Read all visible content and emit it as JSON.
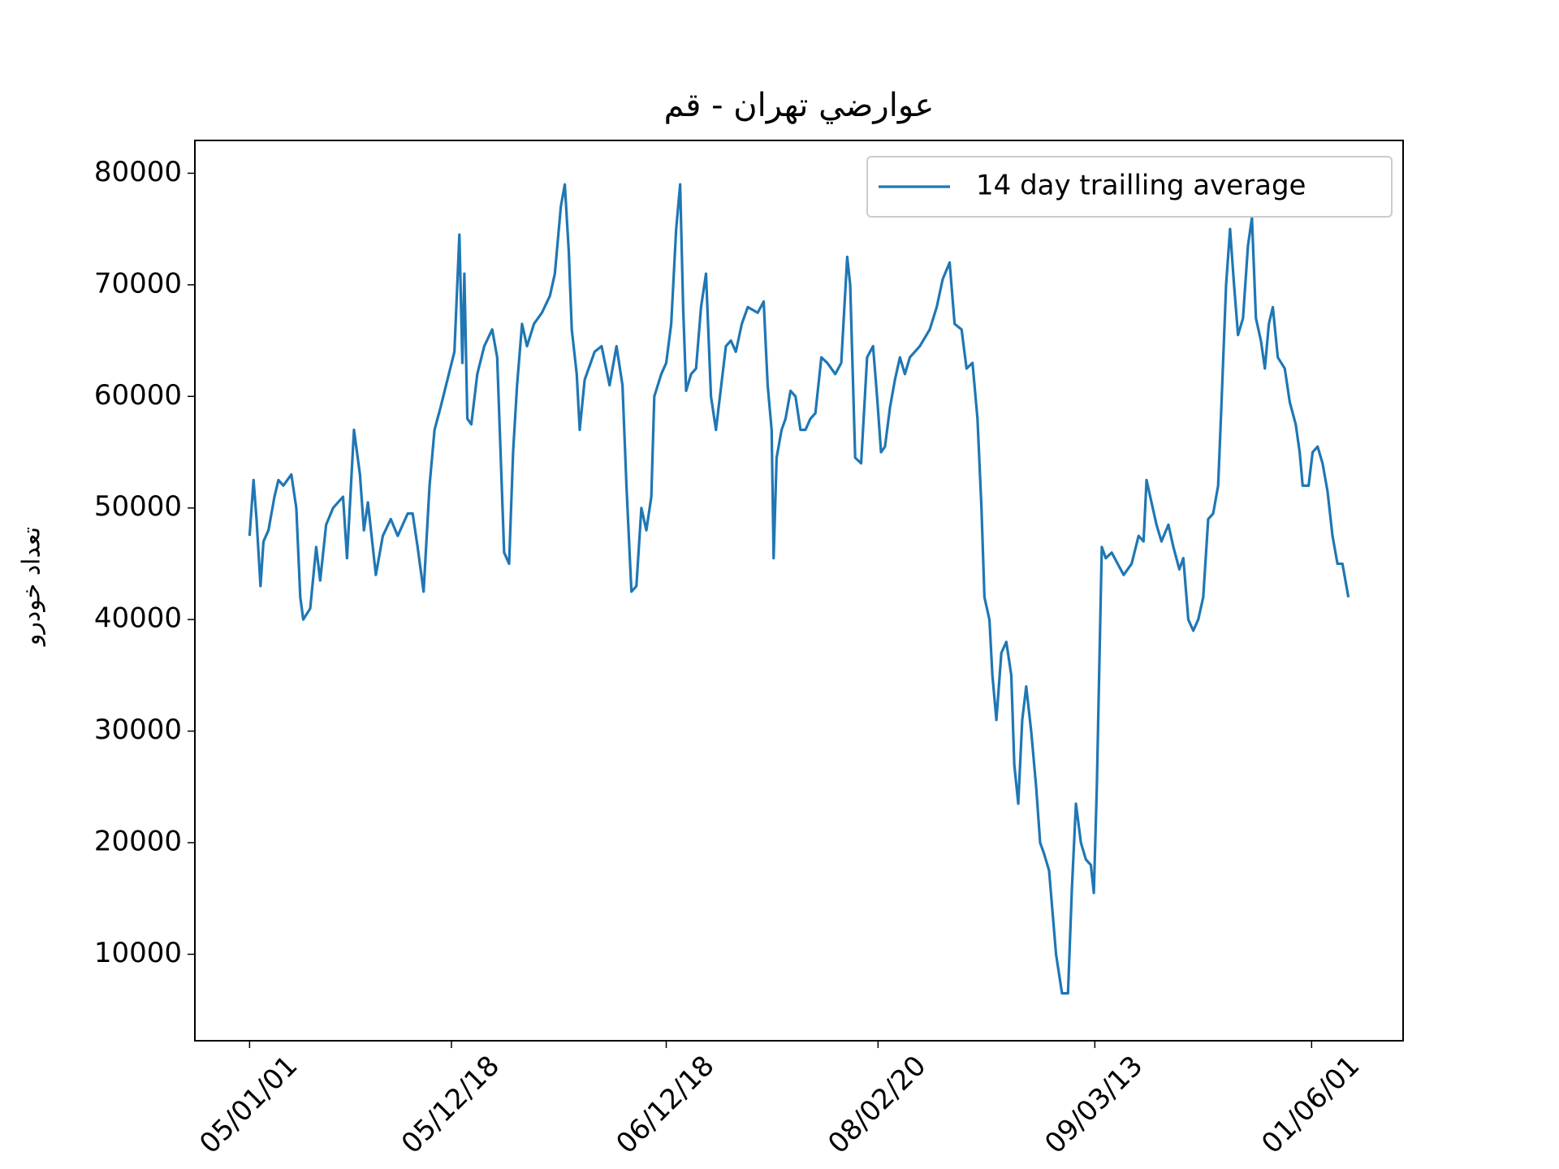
{
  "chart_data": {
    "type": "line",
    "title": "عوارضي تهران - قم",
    "y_label": "تعداد خودرو",
    "x": [
      0,
      4,
      7,
      11,
      14,
      19,
      25,
      29,
      34,
      42,
      47,
      51,
      54,
      61,
      67,
      71,
      77,
      84,
      94,
      98,
      105,
      111,
      115,
      119,
      127,
      134,
      142,
      149,
      159,
      164,
      169,
      175,
      181,
      186,
      192,
      199,
      206,
      211,
      214,
      216,
      219,
      223,
      229,
      236,
      244,
      249,
      252,
      256,
      261,
      265,
      269,
      274,
      279,
      286,
      294,
      302,
      307,
      313,
      317,
      321,
      324,
      329,
      332,
      337,
      347,
      354,
      362,
      369,
      375,
      379,
      384,
      389,
      394,
      399,
      404,
      407,
      414,
      419,
      424,
      429,
      433,
      436,
      439,
      444,
      449,
      454,
      459,
      464,
      469,
      475,
      479,
      484,
      489,
      495,
      501,
      511,
      517,
      521,
      525,
      527,
      530,
      535,
      539,
      544,
      549,
      554,
      559,
      564,
      569,
      575,
      581,
      589,
      595,
      601,
      604,
      609,
      615,
      621,
      627,
      631,
      635,
      639,
      644,
      649,
      654,
      659,
      664,
      674,
      684,
      691,
      697,
      704,
      709,
      716,
      721,
      727,
      732,
      736,
      739,
      744,
      747,
      751,
      756,
      761,
      766,
      769,
      773,
      777,
      781,
      786,
      791,
      795,
      799,
      804,
      811,
      817,
      823,
      827,
      831,
      836,
      841,
      846,
      849,
      852,
      857,
      861,
      867,
      873,
      879,
      887,
      894,
      899,
      902,
      907,
      912,
      917,
      924,
      929,
      935,
      939,
      944,
      949,
      954,
      959,
      964,
      969,
      974,
      977,
      982,
      986,
      990,
      994,
      999,
      1004,
      1008,
      1012,
      1017,
      1021,
      1025,
      1029,
      1034,
      1041,
      1046,
      1052,
      1056,
      1059,
      1065,
      1069,
      1074,
      1079,
      1084,
      1089,
      1094,
      1099,
      1105
    ],
    "series": [
      {
        "name": "14 day trailling average",
        "color": "#1f77b4",
        "values": [
          47500,
          52500,
          49000,
          43000,
          47000,
          48000,
          51000,
          52500,
          52000,
          53000,
          50000,
          42000,
          40000,
          41000,
          46500,
          43500,
          48500,
          50000,
          51000,
          45500,
          57000,
          53000,
          48000,
          50500,
          44000,
          47500,
          49000,
          47500,
          49500,
          49500,
          46500,
          42500,
          52000,
          57000,
          59000,
          61500,
          64000,
          74500,
          63000,
          71000,
          58000,
          57500,
          62000,
          64500,
          66000,
          63500,
          56000,
          46000,
          45000,
          55000,
          61000,
          66500,
          64500,
          66500,
          67500,
          69000,
          71000,
          77000,
          79000,
          73000,
          66000,
          62000,
          57000,
          61500,
          64000,
          64500,
          61000,
          64500,
          61000,
          52000,
          42500,
          43000,
          50000,
          48000,
          51000,
          60000,
          62000,
          63000,
          66500,
          75000,
          79000,
          68000,
          60500,
          62000,
          62500,
          68000,
          71000,
          60000,
          57000,
          61500,
          64500,
          65000,
          64000,
          66500,
          68000,
          67500,
          68500,
          61000,
          57000,
          45500,
          54500,
          57000,
          58000,
          60500,
          60000,
          57000,
          57000,
          58000,
          58500,
          63500,
          63000,
          62000,
          63000,
          72500,
          70000,
          54500,
          54000,
          63500,
          64500,
          60000,
          55000,
          55500,
          59000,
          61500,
          63500,
          62000,
          63500,
          64500,
          66000,
          68000,
          70500,
          72000,
          66500,
          66000,
          62500,
          63000,
          58000,
          50000,
          42000,
          40000,
          35000,
          31000,
          37000,
          38000,
          35000,
          27000,
          23500,
          31000,
          34000,
          30000,
          25000,
          20000,
          19000,
          17500,
          10000,
          6500,
          6500,
          16000,
          23500,
          20000,
          18500,
          18000,
          15500,
          25000,
          46500,
          45500,
          46000,
          45000,
          44000,
          45000,
          47500,
          47000,
          52500,
          50500,
          48500,
          47000,
          48500,
          46500,
          44500,
          45500,
          40000,
          39000,
          40000,
          42000,
          49000,
          49500,
          52000,
          58500,
          70000,
          75000,
          70000,
          65500,
          67000,
          73500,
          76000,
          67000,
          65000,
          62500,
          66500,
          68000,
          63500,
          62500,
          59500,
          57500,
          55000,
          52000,
          52000,
          55000,
          55500,
          54000,
          51500,
          47500,
          45000,
          45000,
          42000
        ]
      }
    ],
    "xlim": [
      -55,
      1160
    ],
    "xticks": [
      {
        "value": 0,
        "label": "05/01/01"
      },
      {
        "value": 203,
        "label": "05/12/18"
      },
      {
        "value": 419,
        "label": "06/12/18"
      },
      {
        "value": 632,
        "label": "08/02/20"
      },
      {
        "value": 850,
        "label": "09/03/13"
      },
      {
        "value": 1068,
        "label": "01/06/01"
      }
    ],
    "ylim": [
      2250,
      82940
    ],
    "yticks": [
      10000,
      20000,
      30000,
      40000,
      50000,
      60000,
      70000,
      80000
    ],
    "legend": "upper right"
  }
}
